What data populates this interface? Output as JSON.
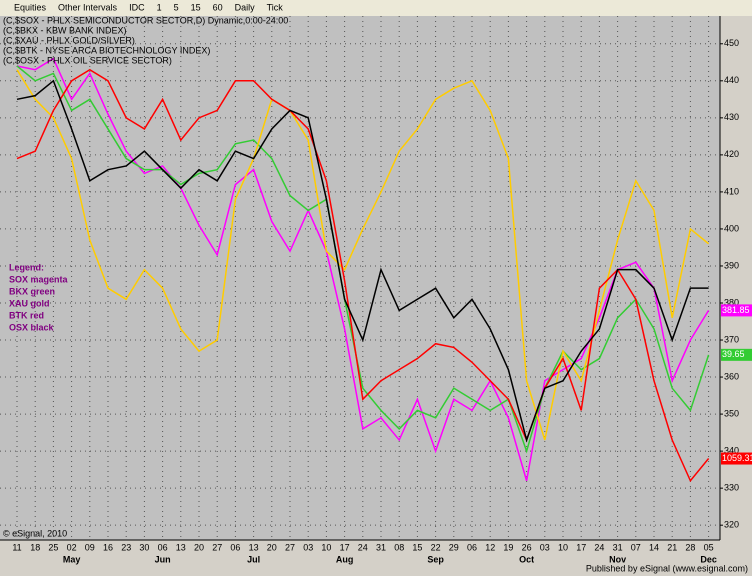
{
  "toolbar": [
    "Equities",
    "Other Intervals",
    "IDC",
    "1",
    "5",
    "15",
    "60",
    "Daily",
    "Tick"
  ],
  "chart_data": {
    "type": "line",
    "header_lines": [
      "(C,$SOX - PHLX SEMICONDUCTOR SECTOR,D) Dynamic,0:00-24:00",
      "(C,$BKX - KBW BANK INDEX)",
      "(C,$XAU - PHLX GOLD/SILVER)",
      "(C,$BTK - NYSE ARCA BIOTECHNOLOGY INDEX)",
      "(C,$OSX - PHLX OIL SERVICE SECTOR)"
    ],
    "legend_lines": [
      "Legend:",
      "SOX magenta",
      "BKX green",
      "XAU gold",
      "BTK red",
      "OSX black"
    ],
    "categories": [
      "11",
      "18",
      "25",
      "02",
      "09",
      "16",
      "23",
      "30",
      "06",
      "13",
      "20",
      "27",
      "06",
      "13",
      "20",
      "27",
      "03",
      "10",
      "17",
      "24",
      "31",
      "08",
      "15",
      "22",
      "29",
      "06",
      "12",
      "19",
      "26",
      "03",
      "10",
      "17",
      "24",
      "31",
      "07",
      "14",
      "21",
      "28",
      "05"
    ],
    "month_labels": [
      null,
      null,
      null,
      "May",
      null,
      null,
      null,
      null,
      "Jun",
      null,
      null,
      null,
      null,
      "Jul",
      null,
      null,
      null,
      null,
      "Aug",
      null,
      null,
      null,
      null,
      "Sep",
      null,
      null,
      null,
      null,
      "Oct",
      null,
      null,
      null,
      null,
      "Nov",
      null,
      null,
      null,
      null,
      "Dec"
    ],
    "ylim": [
      316,
      457.5
    ],
    "yticks": [
      320,
      330,
      340,
      350,
      360,
      370,
      380,
      390,
      400,
      410,
      420,
      430,
      440,
      450
    ],
    "grid": true,
    "series": [
      {
        "name": "SOX",
        "color": "#ff00ff",
        "last_label": "381.85",
        "values": [
          444,
          443,
          446,
          435,
          442,
          431,
          421,
          415,
          417,
          411,
          401,
          393,
          412,
          416,
          402,
          394,
          405,
          394,
          373,
          346,
          349,
          343,
          354,
          340,
          354,
          351,
          359,
          349,
          332,
          359,
          362,
          365,
          376,
          389,
          391,
          384,
          359,
          370,
          378
        ]
      },
      {
        "name": "BKX",
        "color": "#33cc33",
        "last_label": "39.65",
        "values": [
          444,
          440,
          442,
          432,
          435,
          427,
          419,
          416,
          416,
          412,
          415,
          416,
          423,
          424,
          419,
          409,
          405,
          408,
          381,
          357,
          351,
          346,
          351,
          349,
          357,
          354,
          351,
          354,
          340,
          357,
          367,
          362,
          365,
          376,
          381,
          373,
          357,
          351,
          366
        ]
      },
      {
        "name": "XAU",
        "color": "#ffcc00",
        "values": [
          443,
          435,
          430,
          419,
          397,
          384,
          381,
          389,
          384,
          373,
          367,
          370,
          408,
          419,
          435,
          432,
          424,
          394,
          389,
          400,
          410,
          421,
          427,
          435,
          438,
          440,
          432,
          419,
          359,
          343,
          367,
          359,
          378,
          397,
          413,
          405,
          376,
          400,
          396
        ]
      },
      {
        "name": "BTK",
        "color": "#ff0000",
        "last_label": "1059.31",
        "values": [
          419,
          421,
          432,
          440,
          443,
          440,
          430,
          427,
          435,
          424,
          430,
          432,
          440,
          440,
          435,
          432,
          427,
          413,
          386,
          354,
          359,
          362,
          365,
          369,
          368,
          364,
          359,
          354,
          343,
          357,
          365,
          351,
          384,
          389,
          381,
          359,
          343,
          332,
          338
        ]
      },
      {
        "name": "OSX",
        "color": "#000000",
        "values": [
          435,
          436,
          440,
          427,
          413,
          416,
          417,
          421,
          416,
          411,
          416,
          413,
          421,
          419,
          427,
          432,
          430,
          408,
          381,
          370,
          389,
          378,
          381,
          384,
          376,
          381,
          373,
          362,
          343,
          357,
          359,
          367,
          373,
          389,
          389,
          384,
          370,
          384,
          384
        ]
      }
    ],
    "copyright": "© eSignal, 2010",
    "footer": "Published by eSignal (www.esignal.com)"
  }
}
